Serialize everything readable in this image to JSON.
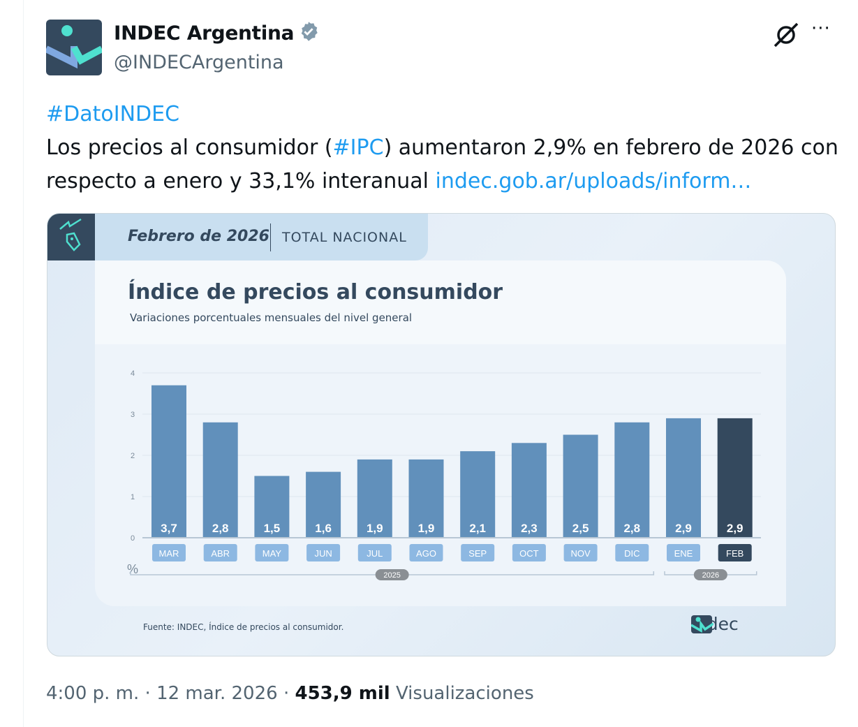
{
  "tweet": {
    "display_name": "INDEC Argentina",
    "handle": "@INDECArgentina",
    "hashtag": "#DatoINDEC",
    "text_1": "Los precios al consumidor (",
    "hashtag_ipc": "#IPC",
    "text_2": ") aumentaron 2,9% en febrero de 2026 con respecto a enero y 33,1% interanual ",
    "link": "indec.gob.ar/uploads/inform…",
    "time": "4:00 p. m.",
    "date": "12 mar. 2026",
    "views_count": "453,9 mil",
    "views_label": "Visualizaciones",
    "sep": " · ",
    "more": "···"
  },
  "image": {
    "period": "Febrero de 2026",
    "scope": "TOTAL NACIONAL",
    "source": "Fuente: INDEC, Índice de precios al consumidor.",
    "logo_text": "indec"
  },
  "colors": {
    "bar": "#6190bb",
    "bar_highlight": "#34495e",
    "label_box": "#8db8e2",
    "link": "#1d9bf0"
  },
  "chart_data": {
    "type": "bar",
    "title": "Índice de precios al consumidor",
    "subtitle": "Variaciones porcentuales mensuales del nivel general",
    "ylabel": "%",
    "ylim": [
      0,
      4
    ],
    "yticks": [
      "0",
      "1",
      "2",
      "3",
      "4"
    ],
    "categories": [
      "MAR",
      "ABR",
      "MAY",
      "JUN",
      "JUL",
      "AGO",
      "SEP",
      "OCT",
      "NOV",
      "DIC",
      "ENE",
      "FEB"
    ],
    "values": [
      3.7,
      2.8,
      1.5,
      1.6,
      1.9,
      1.9,
      2.1,
      2.3,
      2.5,
      2.8,
      2.9,
      2.9
    ],
    "value_labels": [
      "3,7",
      "2,8",
      "1,5",
      "1,6",
      "1,9",
      "1,9",
      "2,1",
      "2,3",
      "2,5",
      "2,8",
      "2,9",
      "2,9"
    ],
    "highlight_index": 11,
    "groups": [
      {
        "label": "2025",
        "from": 0,
        "to": 9
      },
      {
        "label": "2026",
        "from": 10,
        "to": 11
      }
    ],
    "grid": true
  }
}
